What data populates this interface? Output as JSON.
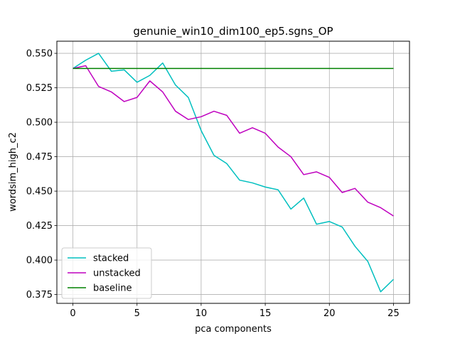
{
  "chart_data": {
    "type": "line",
    "title": "genunie_win10_dim100_ep5.sgns_OP",
    "xlabel": "pca components",
    "ylabel": "wordsim_high_c2",
    "xlim": [
      -1.25,
      26.25
    ],
    "ylim": [
      0.3686,
      0.5588
    ],
    "xticks": [
      0,
      5,
      10,
      15,
      20,
      25
    ],
    "yticks": [
      0.375,
      0.4,
      0.425,
      0.45,
      0.475,
      0.5,
      0.525,
      0.55
    ],
    "ytick_labels": [
      "0.375",
      "0.400",
      "0.425",
      "0.450",
      "0.475",
      "0.500",
      "0.525",
      "0.550"
    ],
    "grid": true,
    "legend_position": "lower-left",
    "x": [
      0,
      1,
      2,
      3,
      4,
      5,
      6,
      7,
      8,
      9,
      10,
      11,
      12,
      13,
      14,
      15,
      16,
      17,
      18,
      19,
      20,
      21,
      22,
      23,
      24,
      25
    ],
    "series": [
      {
        "name": "stacked",
        "color": "#00bfbf",
        "values": [
          0.539,
          0.545,
          0.55,
          0.537,
          0.538,
          0.529,
          0.534,
          0.543,
          0.527,
          0.518,
          0.494,
          0.476,
          0.47,
          0.458,
          0.456,
          0.453,
          0.451,
          0.437,
          0.445,
          0.426,
          0.428,
          0.424,
          0.41,
          0.399,
          0.377,
          0.386
        ]
      },
      {
        "name": "unstacked",
        "color": "#bf00bf",
        "values": [
          0.539,
          0.541,
          0.526,
          0.522,
          0.515,
          0.518,
          0.53,
          0.522,
          0.508,
          0.502,
          0.504,
          0.508,
          0.505,
          0.492,
          0.496,
          0.492,
          0.482,
          0.475,
          0.462,
          0.464,
          0.46,
          0.449,
          0.452,
          0.442,
          0.438,
          0.432
        ]
      },
      {
        "name": "baseline",
        "color": "#008000",
        "values": [
          0.539,
          0.539,
          0.539,
          0.539,
          0.539,
          0.539,
          0.539,
          0.539,
          0.539,
          0.539,
          0.539,
          0.539,
          0.539,
          0.539,
          0.539,
          0.539,
          0.539,
          0.539,
          0.539,
          0.539,
          0.539,
          0.539,
          0.539,
          0.539,
          0.539,
          0.539
        ]
      }
    ]
  }
}
